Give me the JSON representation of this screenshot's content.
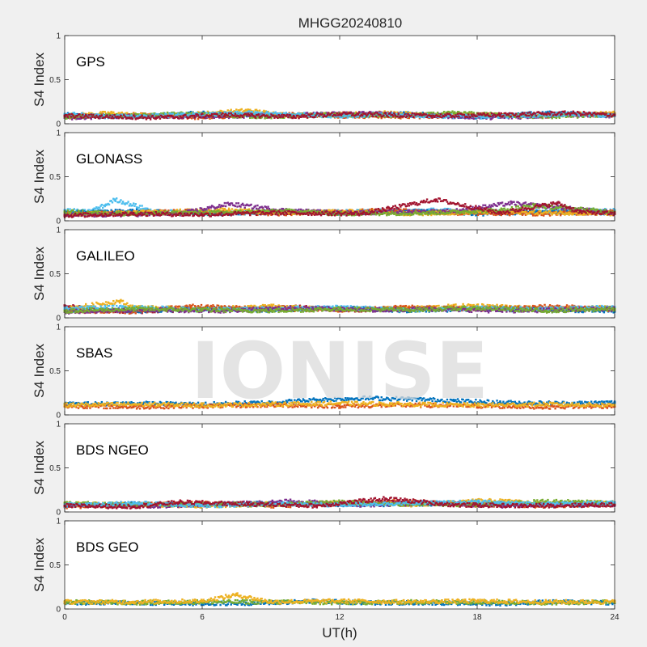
{
  "chart_data": {
    "type": "scatter",
    "title": "MHGG20240810",
    "xlabel": "UT(h)",
    "ylabel": "S4 Index",
    "xlim": [
      0,
      24
    ],
    "ylim": [
      0,
      1
    ],
    "x_ticks": [
      "0",
      "6",
      "12",
      "18",
      "24"
    ],
    "y_ticks": [
      "0",
      "0.5",
      "1"
    ],
    "grid": false,
    "watermark": "IONISE",
    "series_colors": [
      "#0072bd",
      "#d95319",
      "#edb120",
      "#7e2f8e",
      "#77ac30",
      "#4dbeee",
      "#a2142f"
    ],
    "panels": [
      {
        "name": "GPS",
        "tracks": [
          {
            "color": "#0072bd",
            "x": [
              0,
              3,
              6,
              9,
              12,
              15,
              18,
              21,
              24
            ],
            "y": [
              0.1,
              0.08,
              0.12,
              0.09,
              0.1,
              0.11,
              0.08,
              0.12,
              0.1
            ]
          },
          {
            "color": "#d95319",
            "x": [
              0,
              3,
              6,
              9,
              12,
              15,
              18,
              21,
              24
            ],
            "y": [
              0.08,
              0.1,
              0.07,
              0.11,
              0.09,
              0.08,
              0.1,
              0.09,
              0.11
            ]
          },
          {
            "color": "#edb120",
            "x": [
              0,
              2,
              4,
              8,
              10,
              14,
              16,
              20,
              24
            ],
            "y": [
              0.09,
              0.12,
              0.08,
              0.15,
              0.09,
              0.12,
              0.1,
              0.09,
              0.12
            ]
          },
          {
            "color": "#7e2f8e",
            "x": [
              0,
              4,
              6,
              10,
              13,
              16,
              19,
              22,
              24
            ],
            "y": [
              0.07,
              0.09,
              0.08,
              0.1,
              0.12,
              0.09,
              0.07,
              0.1,
              0.09
            ]
          },
          {
            "color": "#77ac30",
            "x": [
              0,
              3,
              5,
              9,
              11,
              15,
              17,
              21,
              24
            ],
            "y": [
              0.08,
              0.09,
              0.11,
              0.08,
              0.1,
              0.09,
              0.12,
              0.08,
              0.1
            ]
          },
          {
            "color": "#4dbeee",
            "x": [
              0,
              2,
              6,
              8,
              12,
              14,
              18,
              22,
              24
            ],
            "y": [
              0.11,
              0.08,
              0.1,
              0.12,
              0.09,
              0.1,
              0.08,
              0.11,
              0.09
            ]
          },
          {
            "color": "#a2142f",
            "x": [
              0,
              4,
              7,
              10,
              12,
              16,
              19,
              22,
              24
            ],
            "y": [
              0.09,
              0.07,
              0.1,
              0.08,
              0.11,
              0.09,
              0.1,
              0.12,
              0.1
            ]
          }
        ]
      },
      {
        "name": "GLONASS",
        "tracks": [
          {
            "color": "#4dbeee",
            "x": [
              0,
              1,
              1.8,
              2.2,
              4,
              8,
              12,
              16,
              20,
              24
            ],
            "y": [
              0.12,
              0.1,
              0.18,
              0.24,
              0.1,
              0.09,
              0.1,
              0.12,
              0.1,
              0.12
            ]
          },
          {
            "color": "#0072bd",
            "x": [
              0,
              3,
              6,
              9,
              12,
              15,
              18,
              21,
              24
            ],
            "y": [
              0.09,
              0.11,
              0.08,
              0.1,
              0.09,
              0.11,
              0.08,
              0.1,
              0.09
            ]
          },
          {
            "color": "#d95319",
            "x": [
              0,
              3,
              6,
              9,
              12,
              14,
              17,
              21,
              24
            ],
            "y": [
              0.08,
              0.09,
              0.11,
              0.08,
              0.1,
              0.12,
              0.09,
              0.08,
              0.1
            ]
          },
          {
            "color": "#edb120",
            "x": [
              0,
              4,
              7,
              10,
              13,
              15,
              18,
              22,
              24
            ],
            "y": [
              0.07,
              0.1,
              0.12,
              0.09,
              0.11,
              0.08,
              0.1,
              0.09,
              0.08
            ]
          },
          {
            "color": "#7e2f8e",
            "x": [
              0,
              5,
              7.2,
              9.5,
              12,
              15,
              17,
              19.5,
              24
            ],
            "y": [
              0.06,
              0.08,
              0.19,
              0.12,
              0.09,
              0.1,
              0.11,
              0.2,
              0.09
            ]
          },
          {
            "color": "#77ac30",
            "x": [
              0,
              3,
              6,
              10,
              12,
              16,
              19,
              20.5,
              24
            ],
            "y": [
              0.1,
              0.08,
              0.09,
              0.11,
              0.08,
              0.09,
              0.12,
              0.17,
              0.1
            ]
          },
          {
            "color": "#a2142f",
            "x": [
              0,
              3,
              6,
              9,
              13,
              16.2,
              19,
              21.5,
              22.5,
              24
            ],
            "y": [
              0.06,
              0.08,
              0.07,
              0.09,
              0.08,
              0.24,
              0.09,
              0.2,
              0.1,
              0.08
            ]
          }
        ]
      },
      {
        "name": "GALILEO",
        "tracks": [
          {
            "color": "#a2142f",
            "x": [
              0,
              1,
              3,
              5,
              8,
              10,
              13,
              16,
              19,
              22,
              24
            ],
            "y": [
              0.14,
              0.1,
              0.07,
              0.09,
              0.1,
              0.12,
              0.09,
              0.11,
              0.1,
              0.09,
              0.11
            ]
          },
          {
            "color": "#edb120",
            "x": [
              0,
              2.4,
              3,
              6,
              9,
              12,
              15,
              18,
              21,
              24
            ],
            "y": [
              0.1,
              0.19,
              0.12,
              0.1,
              0.13,
              0.09,
              0.11,
              0.14,
              0.1,
              0.12
            ]
          },
          {
            "color": "#0072bd",
            "x": [
              0,
              3,
              6,
              9,
              12,
              15,
              18,
              21,
              24
            ],
            "y": [
              0.09,
              0.08,
              0.1,
              0.09,
              0.11,
              0.08,
              0.1,
              0.09,
              0.08
            ]
          },
          {
            "color": "#d95319",
            "x": [
              0,
              3,
              5.5,
              9,
              12,
              15,
              18,
              21.5,
              24
            ],
            "y": [
              0.08,
              0.07,
              0.13,
              0.1,
              0.09,
              0.12,
              0.1,
              0.13,
              0.09
            ]
          },
          {
            "color": "#4dbeee",
            "x": [
              0,
              3,
              6,
              9,
              12,
              15,
              18,
              21,
              24
            ],
            "y": [
              0.11,
              0.12,
              0.09,
              0.1,
              0.12,
              0.09,
              0.11,
              0.1,
              0.12
            ]
          },
          {
            "color": "#7e2f8e",
            "x": [
              0,
              4,
              7,
              10,
              13,
              16,
              19,
              22,
              24
            ],
            "y": [
              0.07,
              0.09,
              0.08,
              0.11,
              0.09,
              0.1,
              0.08,
              0.09,
              0.1
            ]
          },
          {
            "color": "#77ac30",
            "x": [
              0,
              3,
              6,
              9,
              12,
              15,
              18,
              21,
              24
            ],
            "y": [
              0.08,
              0.1,
              0.09,
              0.08,
              0.1,
              0.09,
              0.11,
              0.08,
              0.1
            ]
          }
        ]
      },
      {
        "name": "SBAS",
        "tracks": [
          {
            "color": "#0072bd",
            "x": [
              0,
              3,
              6,
              9,
              11,
              13,
              15,
              17,
              19,
              22,
              24
            ],
            "y": [
              0.12,
              0.13,
              0.12,
              0.14,
              0.17,
              0.19,
              0.18,
              0.16,
              0.14,
              0.13,
              0.14
            ]
          },
          {
            "color": "#d95319",
            "x": [
              0,
              3,
              6,
              9,
              12,
              15,
              18,
              21,
              24
            ],
            "y": [
              0.1,
              0.09,
              0.1,
              0.11,
              0.1,
              0.11,
              0.1,
              0.09,
              0.1
            ]
          },
          {
            "color": "#edb120",
            "x": [
              0,
              3,
              6,
              9,
              12,
              15,
              18,
              21,
              24
            ],
            "y": [
              0.11,
              0.12,
              0.11,
              0.12,
              0.13,
              0.12,
              0.11,
              0.12,
              0.11
            ]
          }
        ]
      },
      {
        "name": "BDS NGEO",
        "tracks": [
          {
            "color": "#0072bd",
            "x": [
              0,
              3,
              6,
              9,
              12,
              15,
              18,
              21,
              24
            ],
            "y": [
              0.07,
              0.09,
              0.08,
              0.1,
              0.08,
              0.09,
              0.1,
              0.08,
              0.09
            ]
          },
          {
            "color": "#d95319",
            "x": [
              0,
              3,
              6,
              9,
              12,
              15,
              18,
              21,
              24
            ],
            "y": [
              0.06,
              0.08,
              0.1,
              0.07,
              0.09,
              0.12,
              0.08,
              0.07,
              0.09
            ]
          },
          {
            "color": "#edb120",
            "x": [
              0,
              3,
              6,
              9,
              12,
              15,
              18.5,
              21,
              23,
              24
            ],
            "y": [
              0.09,
              0.08,
              0.07,
              0.09,
              0.1,
              0.08,
              0.13,
              0.09,
              0.11,
              0.09
            ]
          },
          {
            "color": "#7e2f8e",
            "x": [
              0,
              4,
              7,
              10,
              13,
              16,
              19,
              22,
              24
            ],
            "y": [
              0.08,
              0.07,
              0.09,
              0.12,
              0.08,
              0.1,
              0.07,
              0.09,
              0.08
            ]
          },
          {
            "color": "#77ac30",
            "x": [
              0,
              3,
              6,
              9,
              12,
              15,
              18,
              21,
              24
            ],
            "y": [
              0.1,
              0.08,
              0.09,
              0.08,
              0.11,
              0.09,
              0.08,
              0.12,
              0.1
            ]
          },
          {
            "color": "#4dbeee",
            "x": [
              0,
              3,
              6,
              9,
              12,
              15,
              18,
              21,
              24
            ],
            "y": [
              0.08,
              0.1,
              0.07,
              0.09,
              0.08,
              0.1,
              0.11,
              0.09,
              0.1
            ]
          },
          {
            "color": "#a2142f",
            "x": [
              0,
              3,
              5,
              8,
              11,
              14,
              17,
              20,
              24
            ],
            "y": [
              0.07,
              0.06,
              0.11,
              0.09,
              0.07,
              0.15,
              0.08,
              0.07,
              0.08
            ]
          }
        ]
      },
      {
        "name": "BDS GEO",
        "tracks": [
          {
            "color": "#0072bd",
            "x": [
              0,
              3,
              6,
              9,
              11,
              13,
              16,
              19,
              21,
              24
            ],
            "y": [
              0.07,
              0.07,
              0.06,
              0.07,
              0.09,
              0.07,
              0.07,
              0.06,
              0.08,
              0.07
            ]
          },
          {
            "color": "#77ac30",
            "x": [
              0,
              3,
              6,
              9,
              12,
              15,
              18,
              21,
              24
            ],
            "y": [
              0.08,
              0.07,
              0.08,
              0.08,
              0.07,
              0.08,
              0.08,
              0.07,
              0.08
            ]
          },
          {
            "color": "#edb120",
            "x": [
              0,
              3,
              6,
              7.5,
              9,
              12,
              15,
              18,
              21,
              24
            ],
            "y": [
              0.08,
              0.08,
              0.09,
              0.16,
              0.08,
              0.09,
              0.08,
              0.09,
              0.08,
              0.08
            ]
          }
        ]
      }
    ]
  }
}
